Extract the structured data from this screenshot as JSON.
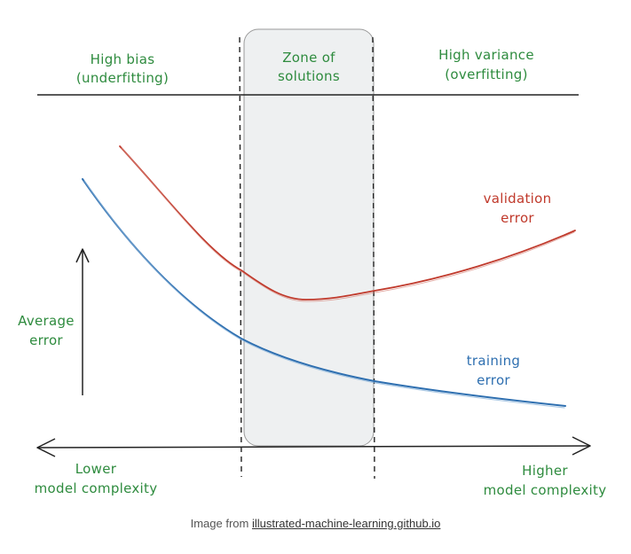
{
  "diagram": {
    "regions": {
      "left": {
        "line1": "High bias",
        "line2": "(underfitting)"
      },
      "middle": {
        "line1": "Zone of",
        "line2": "solutions"
      },
      "right": {
        "line1": "High variance",
        "line2": "(overfitting)"
      }
    },
    "curves": {
      "validation": {
        "line1": "validation",
        "line2": "error",
        "color": "#c0392b"
      },
      "training": {
        "line1": "training",
        "line2": "error",
        "color": "#2e6fb0"
      }
    },
    "y_axis": {
      "line1": "Average",
      "line2": "error"
    },
    "x_axis": {
      "left": {
        "line1": "Lower",
        "line2": "model complexity"
      },
      "right": {
        "line1": "Higher",
        "line2": "model complexity"
      }
    },
    "label_color": "#2e8b3e"
  },
  "caption": {
    "prefix": "Image from ",
    "link_text": "illustrated-machine-learning.github.io"
  }
}
